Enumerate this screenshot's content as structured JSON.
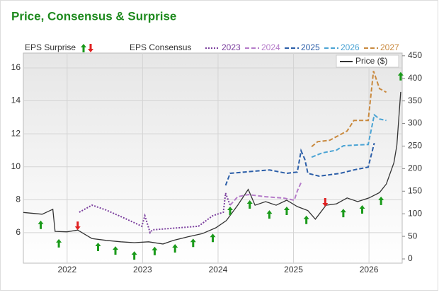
{
  "chart_data": {
    "type": "line",
    "title": "Price, Consensus & Surprise",
    "surprise_label": "EPS Surprise",
    "consensus_label": "EPS Consensus",
    "xlim": [
      2021.42,
      2026.44
    ],
    "xticks": [
      2022,
      2023,
      2024,
      2025,
      2026
    ],
    "ylim": [
      4.15,
      16.9
    ],
    "yticks": [
      6,
      8,
      10,
      12,
      14,
      16
    ],
    "y2lim": [
      -9.4,
      456
    ],
    "y2ticks": [
      0,
      50,
      100,
      150,
      200,
      250,
      300,
      350,
      400,
      450
    ],
    "grid": true,
    "series": [
      {
        "name": "2023",
        "color": "#7b3f9e",
        "style": "dotted",
        "x": [
          2022.16,
          2022.33,
          2022.52,
          2022.75,
          2022.99,
          2023.03,
          2023.1,
          2023.13,
          2023.74,
          2023.93,
          2024.07,
          2024.1,
          2024.16
        ],
        "values": [
          7.24,
          7.67,
          7.37,
          6.9,
          6.39,
          7.03,
          6.0,
          6.17,
          6.39,
          7.03,
          7.24,
          8.4,
          7.67
        ]
      },
      {
        "name": "2024",
        "color": "#b57bc9",
        "style": "dashed",
        "x": [
          2024.16,
          2024.26,
          2024.4,
          2024.63,
          2024.87,
          2025.01,
          2025.05,
          2025.1
        ],
        "values": [
          7.67,
          8.18,
          8.31,
          8.18,
          8.1,
          7.97,
          8.53,
          9.04
        ]
      },
      {
        "name": "2025",
        "color": "#2b5ea8",
        "style": "dashed",
        "x": [
          2024.1,
          2024.16,
          2024.35,
          2024.68,
          2024.91,
          2025.05,
          2025.1,
          2025.15,
          2025.19,
          2025.34,
          2025.62,
          2025.8,
          2025.99,
          2026.07
        ],
        "values": [
          8.87,
          9.6,
          9.68,
          9.81,
          9.6,
          9.68,
          10.97,
          10.45,
          9.6,
          9.43,
          9.6,
          9.81,
          9.98,
          11.44
        ]
      },
      {
        "name": "2026",
        "color": "#4aa3d4",
        "style": "dashed",
        "x": [
          2025.24,
          2025.38,
          2025.57,
          2025.66,
          2025.8,
          2025.99,
          2026.07,
          2026.14,
          2026.23
        ],
        "values": [
          10.58,
          10.84,
          11.01,
          11.27,
          11.31,
          11.35,
          13.15,
          12.9,
          12.81
        ]
      },
      {
        "name": "2027",
        "color": "#c9893e",
        "style": "dashed",
        "x": [
          2025.24,
          2025.32,
          2025.48,
          2025.71,
          2025.8,
          2025.99,
          2026.06,
          2026.14,
          2026.23
        ],
        "values": [
          11.22,
          11.52,
          11.61,
          12.17,
          12.81,
          12.81,
          15.81,
          14.74,
          14.52
        ]
      },
      {
        "name": "Price ($)",
        "color": "#333333",
        "style": "solid",
        "axis": "y2",
        "x": [
          2021.42,
          2021.67,
          2021.81,
          2021.84,
          2022.0,
          2022.14,
          2022.33,
          2022.52,
          2022.71,
          2022.89,
          2023.08,
          2023.27,
          2023.41,
          2023.6,
          2023.79,
          2023.97,
          2024.11,
          2024.26,
          2024.4,
          2024.49,
          2024.63,
          2024.77,
          2024.91,
          2025.05,
          2025.19,
          2025.29,
          2025.43,
          2025.57,
          2025.71,
          2025.85,
          2026.0,
          2026.14,
          2026.23,
          2026.33,
          2026.37,
          2026.42
        ],
        "values": [
          103,
          99,
          110,
          61,
          60,
          64,
          45,
          41,
          38,
          36,
          38,
          33,
          41,
          49,
          56,
          69,
          85,
          119,
          154,
          119,
          127,
          119,
          130,
          116,
          107,
          88,
          119,
          122,
          135,
          127,
          135,
          147,
          166,
          213,
          252,
          370
        ]
      }
    ],
    "markers": [
      {
        "direction": "up",
        "color": "#1a9a1a",
        "x": [
          2021.65,
          2021.89,
          2022.41,
          2022.64,
          2022.89,
          2023.16,
          2023.43,
          2023.67,
          2023.93,
          2024.16,
          2024.42,
          2024.68,
          2024.91,
          2025.17,
          2025.66,
          2025.91,
          2026.16,
          2026.42
        ],
        "values": [
          85,
          44,
          36,
          28,
          17,
          27,
          33,
          45,
          56,
          116,
          130,
          108,
          116,
          96,
          111,
          119,
          138,
          414
        ]
      },
      {
        "direction": "down",
        "color": "#e02020",
        "x": [
          2022.14,
          2025.42
        ],
        "values": [
          64,
          116
        ]
      }
    ]
  }
}
